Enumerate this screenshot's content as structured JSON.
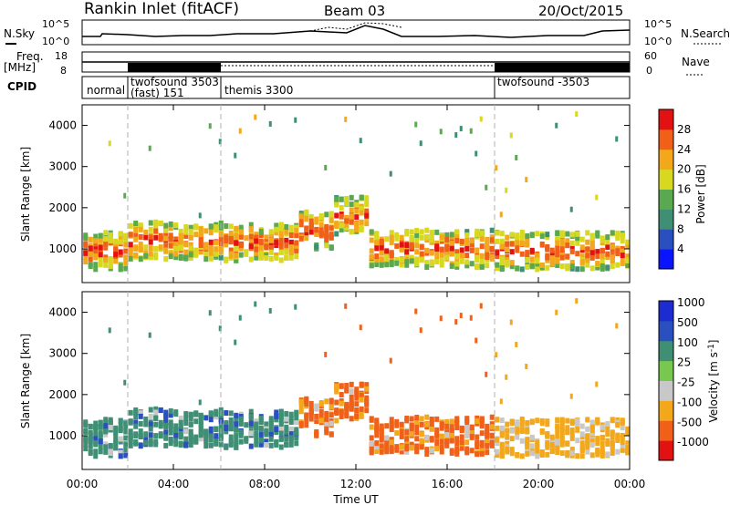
{
  "header": {
    "station": "Rankin Inlet (fitACF)",
    "beam": "Beam 03",
    "date": "20/Oct/2015"
  },
  "noise_panel": {
    "left_label": "N.Sky",
    "left_ticks": [
      "10^5",
      "10^0"
    ],
    "right_label": "N.Search",
    "right_ticks": [
      "10^5",
      "10^0"
    ]
  },
  "freq_panel": {
    "left_label_1": "Freq.",
    "left_label_2": "[MHz]",
    "left_ticks": [
      "18",
      "8"
    ],
    "right_label": "Nave",
    "right_ticks": [
      "60",
      "0"
    ]
  },
  "cpid_panel": {
    "label": "CPID",
    "modes": [
      {
        "line1": "normal",
        "line2": ""
      },
      {
        "line1": "twofsound 3503",
        "line2": "(fast) 151"
      },
      {
        "line1": "themis 3300",
        "line2": ""
      },
      {
        "line1": "twofsound -3503",
        "line2": ""
      }
    ]
  },
  "x_axis": {
    "label": "Time UT",
    "ticks": [
      "00:00",
      "04:00",
      "08:00",
      "12:00",
      "16:00",
      "20:00",
      "00:00"
    ]
  },
  "colors": {
    "power": [
      "#0a14ff",
      "#2a4fbf",
      "#3f8f75",
      "#5aa84f",
      "#d8d820",
      "#f2a81a",
      "#f06018",
      "#e21212"
    ],
    "velocity": [
      "#e21212",
      "#f06018",
      "#f2a81a",
      "#c8c8c8",
      "#78c850",
      "#3f8f75",
      "#2a4fbf",
      "#1c2cd0"
    ]
  },
  "chart_data": [
    {
      "type": "heatmap",
      "title": "Power",
      "ylabel": "Slant Range [km]",
      "xlabel": "",
      "x_range_hours": [
        0,
        24
      ],
      "ylim": [
        180,
        4500
      ],
      "yticks": [
        "1000",
        "2000",
        "3000",
        "4000"
      ],
      "colorbar": {
        "label": "Power [dB]",
        "ticks": [
          "4",
          "8",
          "12",
          "16",
          "20",
          "24",
          "28"
        ],
        "range": [
          0,
          30
        ]
      }
    },
    {
      "type": "heatmap",
      "title": "Velocity",
      "ylabel": "Slant Range [km]",
      "xlabel": "Time UT",
      "x_range_hours": [
        0,
        24
      ],
      "ylim": [
        180,
        4500
      ],
      "yticks": [
        "1000",
        "2000",
        "3000",
        "4000"
      ],
      "colorbar": {
        "label": "Velocity [m s^-1]",
        "ticks": [
          "1000",
          "500",
          "100",
          "25",
          "-25",
          "-100",
          "-500",
          "-1000"
        ]
      }
    }
  ]
}
